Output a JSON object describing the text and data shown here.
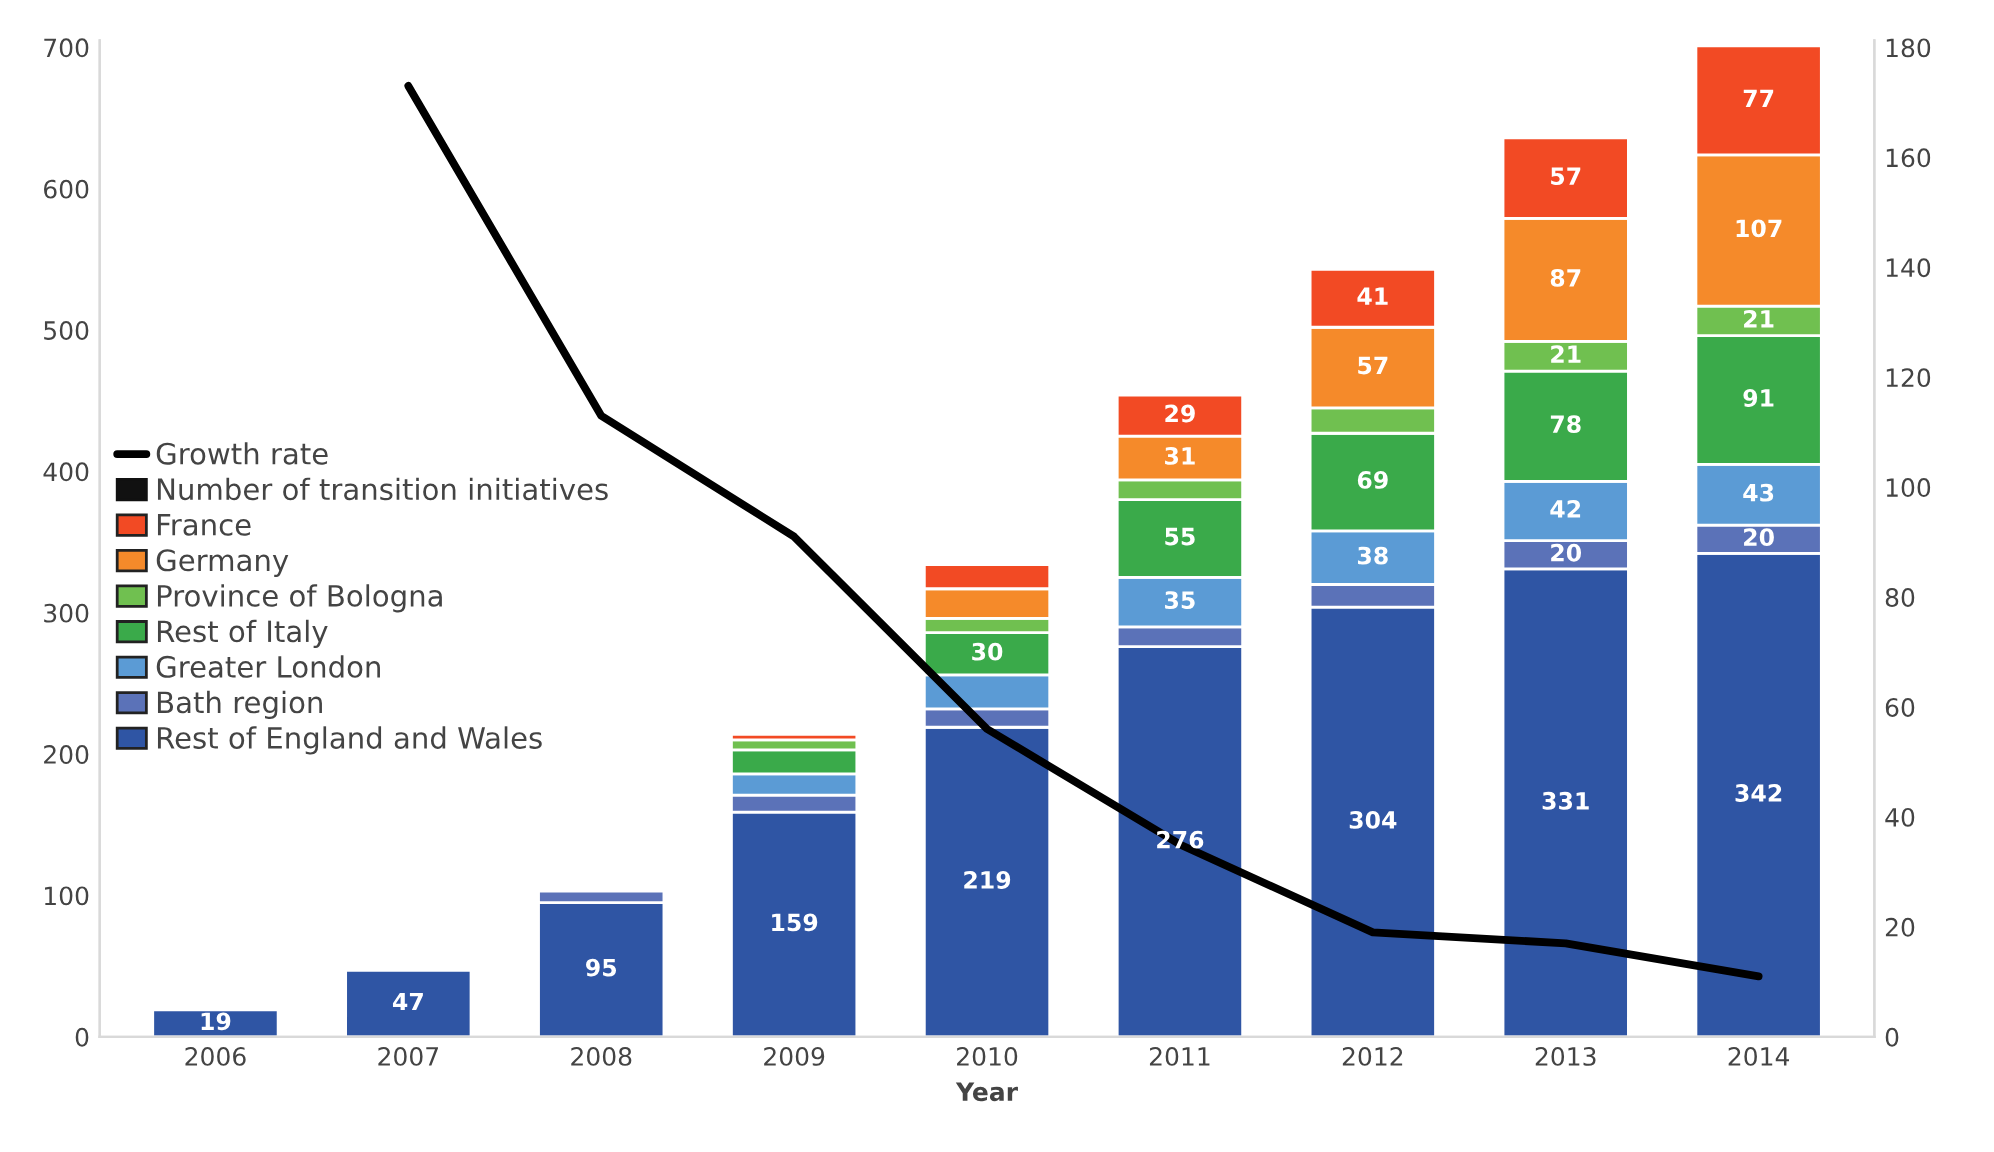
{
  "chart_data": {
    "type": "bar",
    "stacked": true,
    "xlabel": "Year",
    "categories": [
      "2006",
      "2007",
      "2008",
      "2009",
      "2010",
      "2011",
      "2012",
      "2013",
      "2014"
    ],
    "series": [
      {
        "name": "Rest of England and Wales",
        "color": "#2f55a4",
        "values": [
          19,
          47,
          95,
          159,
          219,
          276,
          304,
          331,
          342
        ],
        "value_labels": [
          "19",
          "47",
          "95",
          "159",
          "219",
          "276",
          "304",
          "331",
          "342"
        ]
      },
      {
        "name": "Bath region",
        "color": "#5b72b8",
        "values": [
          null,
          null,
          8,
          12,
          13,
          14,
          16,
          20,
          20
        ],
        "value_labels": [
          null,
          null,
          null,
          null,
          null,
          null,
          null,
          "20",
          "20"
        ]
      },
      {
        "name": "Greater London",
        "color": "#5b9bd5",
        "values": [
          null,
          null,
          null,
          15,
          24,
          35,
          38,
          42,
          43
        ],
        "value_labels": [
          null,
          null,
          null,
          null,
          null,
          "35",
          "38",
          "42",
          "43"
        ]
      },
      {
        "name": "Rest of Italy",
        "color": "#3aaa4a",
        "values": [
          null,
          null,
          null,
          17,
          30,
          55,
          69,
          78,
          91
        ],
        "value_labels": [
          null,
          null,
          null,
          null,
          "30",
          "55",
          "69",
          "78",
          "91"
        ]
      },
      {
        "name": "Province of Bologna",
        "color": "#70c050",
        "values": [
          null,
          null,
          null,
          7,
          10,
          14,
          18,
          21,
          21
        ],
        "value_labels": [
          null,
          null,
          null,
          null,
          null,
          null,
          null,
          "21",
          "21"
        ]
      },
      {
        "name": "Germany",
        "color": "#f58a2a",
        "values": [
          null,
          null,
          null,
          null,
          21,
          31,
          57,
          87,
          107
        ],
        "value_labels": [
          null,
          null,
          null,
          null,
          null,
          "31",
          "57",
          "87",
          "107"
        ]
      },
      {
        "name": "France",
        "color": "#f24a24",
        "values": [
          null,
          null,
          null,
          4,
          17,
          29,
          41,
          57,
          77
        ],
        "value_labels": [
          null,
          null,
          null,
          null,
          null,
          "29",
          "41",
          "57",
          "77"
        ]
      },
      {
        "name": "Growth rate",
        "type": "line",
        "axis": "y2",
        "color": "#000000",
        "values": [
          null,
          173,
          113,
          91,
          56,
          35,
          19,
          17,
          11
        ]
      }
    ],
    "annotations": [
      "Number of transition initiatives"
    ],
    "ylim": [
      0,
      705
    ],
    "yticks": [
      0,
      100,
      200,
      300,
      400,
      500,
      600,
      700
    ],
    "y2lim": [
      0,
      181.3
    ],
    "y2ticks": [
      0,
      20,
      40,
      60,
      80,
      100,
      120,
      140,
      160,
      180
    ],
    "grid": false,
    "legend": "left",
    "marker": "none",
    "line_style": "solid"
  }
}
